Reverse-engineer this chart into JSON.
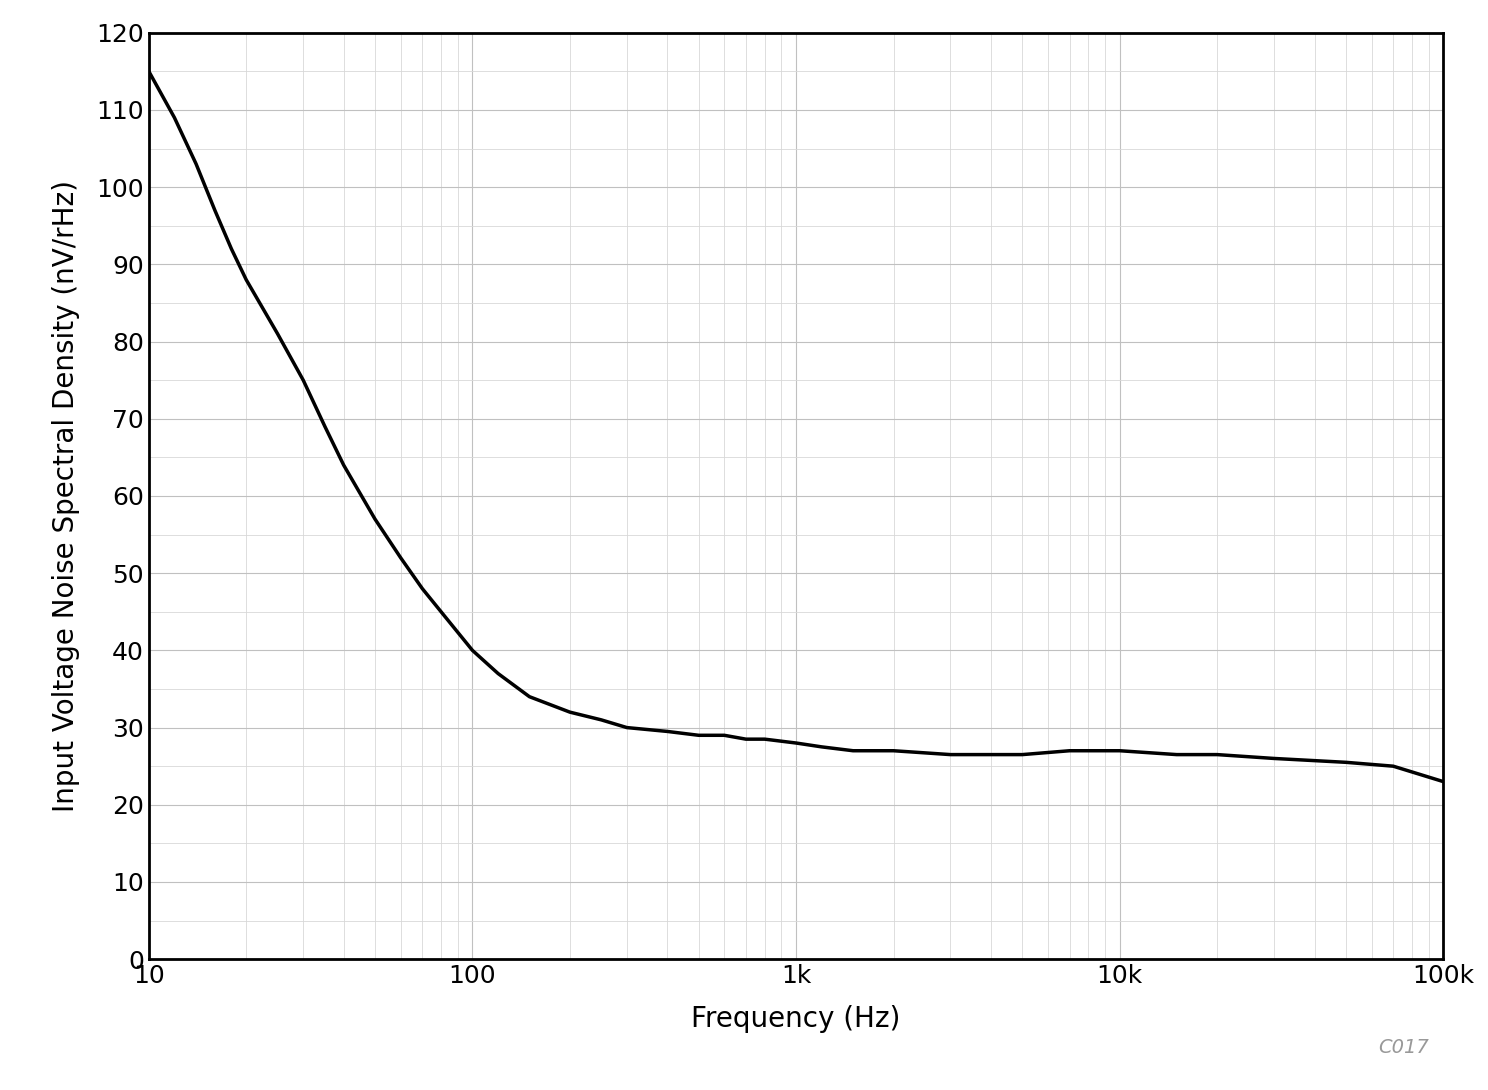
{
  "xlabel": "Frequency (Hz)",
  "ylabel": "Input Voltage Noise Spectral Density (nV/rHz)",
  "annotation": "C017",
  "xlim": [
    10,
    100000
  ],
  "ylim": [
    0,
    120
  ],
  "yticks": [
    0,
    10,
    20,
    30,
    40,
    50,
    60,
    70,
    80,
    90,
    100,
    110,
    120
  ],
  "xtick_labels": [
    "10",
    "100",
    "1k",
    "10k",
    "100k"
  ],
  "xtick_positions": [
    10,
    100,
    1000,
    10000,
    100000
  ],
  "line_color": "#000000",
  "line_width": 2.5,
  "background_color": "#ffffff",
  "grid_major_color": "#c0c0c0",
  "grid_minor_color": "#d8d8d8",
  "xlabel_fontsize": 20,
  "ylabel_fontsize": 20,
  "tick_fontsize": 18,
  "annotation_fontsize": 14,
  "curve_x": [
    10,
    12,
    14,
    16,
    18,
    20,
    25,
    30,
    35,
    40,
    50,
    60,
    70,
    80,
    100,
    120,
    150,
    200,
    250,
    300,
    400,
    500,
    600,
    700,
    800,
    1000,
    1200,
    1500,
    2000,
    3000,
    5000,
    7000,
    10000,
    15000,
    20000,
    30000,
    50000,
    70000,
    100000
  ],
  "curve_y": [
    115,
    109,
    103,
    97,
    92,
    88,
    81,
    75,
    69,
    64,
    57,
    52,
    48,
    45,
    40,
    37,
    34,
    32,
    31,
    30,
    29.5,
    29,
    29,
    28.5,
    28.5,
    28,
    27.5,
    27,
    27,
    26.5,
    26.5,
    27,
    27,
    26.5,
    26.5,
    26,
    25.5,
    25,
    23
  ]
}
